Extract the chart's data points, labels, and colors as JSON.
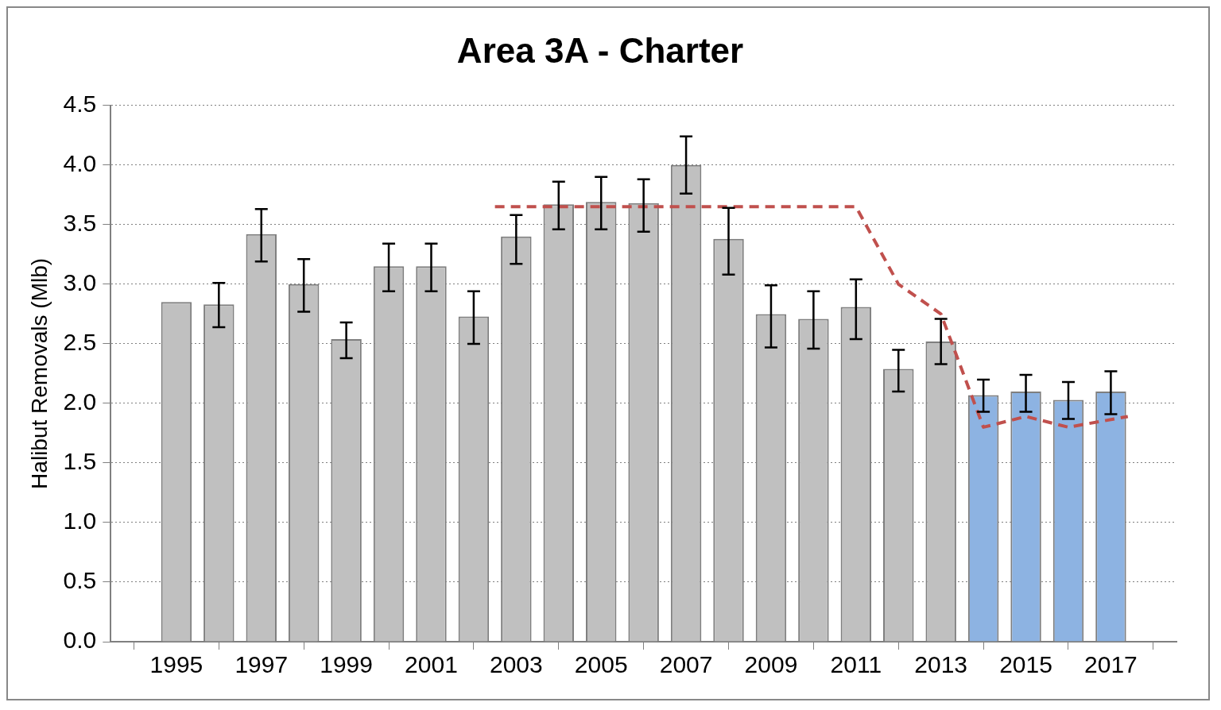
{
  "chart_data": {
    "type": "bar",
    "title": "Area 3A - Charter",
    "ylabel": "Halibut Removals (Mlb)",
    "x": [
      1995,
      1996,
      1997,
      1998,
      1999,
      2000,
      2001,
      2002,
      2003,
      2004,
      2005,
      2006,
      2007,
      2008,
      2009,
      2010,
      2011,
      2012,
      2013,
      2014,
      2015,
      2016,
      2017
    ],
    "xlim": [
      1994.5,
      2017.5
    ],
    "xticks": [
      1995,
      1997,
      1999,
      2001,
      2003,
      2005,
      2007,
      2009,
      2011,
      2013,
      2015,
      2017
    ],
    "ylim": [
      0,
      4.5
    ],
    "yticks": [
      {
        "value": 0,
        "label": "0.0"
      },
      0.5,
      {
        "value": 1,
        "label": "1.0"
      },
      1.5,
      {
        "value": 2,
        "label": "2.0"
      },
      2.5,
      {
        "value": 3,
        "label": "3.0"
      },
      3.5,
      {
        "value": 4,
        "label": "4.0"
      },
      4.5
    ],
    "grid": "y",
    "legend": false,
    "series": [
      {
        "values": [
          2.85,
          2.83,
          3.42,
          3.0,
          2.54,
          3.15,
          3.15,
          2.73,
          3.4,
          3.67,
          3.69,
          3.68,
          4.0,
          3.38,
          2.75,
          2.71,
          2.81,
          2.29,
          2.52,
          2.07,
          2.1,
          2.03,
          2.1
        ],
        "colors": [
          "#c0c0c0",
          "#c0c0c0",
          "#c0c0c0",
          "#c0c0c0",
          "#c0c0c0",
          "#c0c0c0",
          "#c0c0c0",
          "#c0c0c0",
          "#c0c0c0",
          "#c0c0c0",
          "#c0c0c0",
          "#c0c0c0",
          "#c0c0c0",
          "#c0c0c0",
          "#c0c0c0",
          "#c0c0c0",
          "#c0c0c0",
          "#c0c0c0",
          "#c0c0c0",
          "#8db3e2",
          "#8db3e2",
          "#8db3e2",
          "#8db3e2"
        ],
        "errors": [
          null,
          [
            2.64,
            3.01
          ],
          [
            3.19,
            3.63
          ],
          [
            2.77,
            3.21
          ],
          [
            2.38,
            2.68
          ],
          [
            2.94,
            3.34
          ],
          [
            2.94,
            3.34
          ],
          [
            2.5,
            2.94
          ],
          [
            3.17,
            3.58
          ],
          [
            3.46,
            3.86
          ],
          [
            3.46,
            3.9
          ],
          [
            3.44,
            3.88
          ],
          [
            3.76,
            4.24
          ],
          [
            3.08,
            3.64
          ],
          [
            2.47,
            2.99
          ],
          [
            2.46,
            2.94
          ],
          [
            2.54,
            3.04
          ],
          [
            2.1,
            2.45
          ],
          [
            2.33,
            2.71
          ],
          [
            1.93,
            2.2
          ],
          [
            1.93,
            2.24
          ],
          [
            1.87,
            2.18
          ],
          [
            1.91,
            2.27
          ]
        ]
      },
      {
        "type": "line",
        "color": "#c0504d",
        "line_style": "dashed",
        "marker": "none",
        "x": [
          2002.5,
          2011,
          2012,
          2013,
          2014,
          2015,
          2016,
          2017.4
        ],
        "values": [
          3.65,
          3.65,
          3.0,
          2.75,
          1.8,
          1.89,
          1.8,
          1.89
        ]
      }
    ]
  }
}
